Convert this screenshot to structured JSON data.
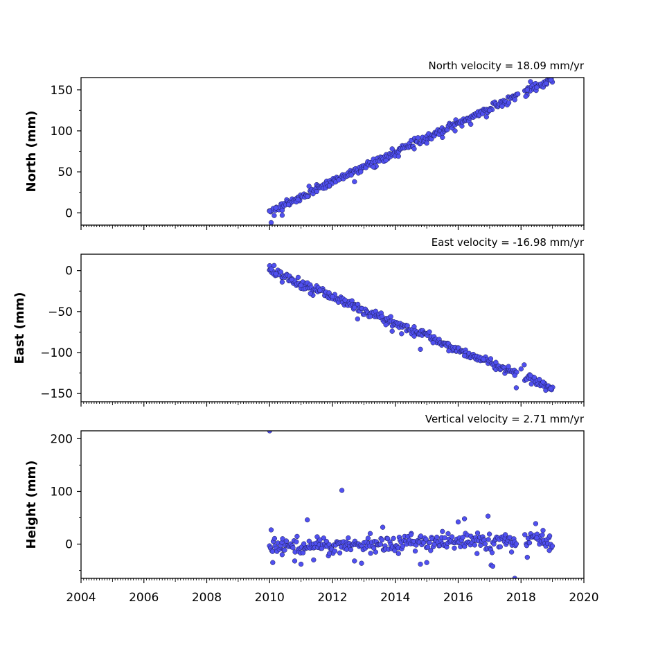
{
  "chart_data": [
    {
      "type": "scatter",
      "title": "North velocity = 18.09 mm/yr",
      "ylabel": "North (mm)",
      "xlim": [
        2004,
        2020
      ],
      "ylim": [
        -15,
        165
      ],
      "yticks": [
        0,
        50,
        100,
        150
      ],
      "ytick_labels": [
        "0",
        "50",
        "100",
        "150"
      ],
      "marker_color": "#5050f0",
      "points": [
        [
          2010.0,
          2
        ],
        [
          2010.05,
          -12
        ],
        [
          2010.2,
          6
        ],
        [
          2010.4,
          3
        ],
        [
          2010.4,
          -3
        ],
        [
          2010.6,
          10
        ],
        [
          2010.9,
          16
        ],
        [
          2011.2,
          20
        ],
        [
          2011.5,
          26
        ],
        [
          2011.9,
          33
        ],
        [
          2012.2,
          40
        ],
        [
          2012.6,
          46
        ],
        [
          2012.7,
          38
        ],
        [
          2012.9,
          50
        ],
        [
          2013.3,
          56
        ],
        [
          2013.7,
          64
        ],
        [
          2013.9,
          78
        ],
        [
          2014.1,
          69
        ],
        [
          2014.6,
          78
        ],
        [
          2015.0,
          85
        ],
        [
          2015.5,
          92
        ],
        [
          2015.9,
          100
        ],
        [
          2016.4,
          108
        ],
        [
          2016.9,
          117
        ],
        [
          2017.0,
          125
        ],
        [
          2017.4,
          130
        ],
        [
          2017.8,
          138
        ],
        [
          2017.9,
          145
        ],
        [
          2018.15,
          142
        ],
        [
          2018.2,
          150
        ],
        [
          2018.3,
          160
        ],
        [
          2018.5,
          153
        ],
        [
          2018.8,
          158
        ],
        [
          2018.95,
          162
        ]
      ],
      "trend": {
        "start": [
          2010.0,
          2
        ],
        "end": [
          2019.0,
          163
        ],
        "scatter": 3,
        "outlier_every": 37
      }
    },
    {
      "type": "scatter",
      "title": "East velocity = -16.98 mm/yr",
      "ylabel": "East (mm)",
      "xlim": [
        2004,
        2020
      ],
      "ylim": [
        -160,
        20
      ],
      "yticks": [
        0,
        -50,
        -100,
        -150
      ],
      "ytick_labels": [
        "0",
        "−50",
        "−100",
        "−150"
      ],
      "marker_color": "#5050f0",
      "points": [
        [
          2010.0,
          6
        ],
        [
          2010.05,
          2
        ],
        [
          2010.2,
          -4
        ],
        [
          2010.4,
          -14
        ],
        [
          2010.7,
          -11
        ],
        [
          2011.0,
          -18
        ],
        [
          2011.3,
          -28
        ],
        [
          2011.6,
          -24
        ],
        [
          2012.0,
          -32
        ],
        [
          2012.4,
          -36
        ],
        [
          2012.7,
          -45
        ],
        [
          2012.8,
          -59
        ],
        [
          2013.2,
          -56
        ],
        [
          2013.7,
          -66
        ],
        [
          2013.9,
          -74
        ],
        [
          2014.2,
          -77
        ],
        [
          2014.6,
          -80
        ],
        [
          2014.8,
          -96
        ],
        [
          2015.2,
          -88
        ],
        [
          2015.7,
          -98
        ],
        [
          2016.2,
          -104
        ],
        [
          2016.8,
          -108
        ],
        [
          2017.2,
          -112
        ],
        [
          2017.6,
          -117
        ],
        [
          2017.8,
          -128
        ],
        [
          2017.85,
          -143
        ],
        [
          2018.0,
          -120
        ],
        [
          2018.1,
          -115
        ],
        [
          2018.3,
          -128
        ],
        [
          2018.7,
          -136
        ],
        [
          2018.95,
          -144
        ]
      ],
      "trend": {
        "start": [
          2010.0,
          0
        ],
        "end": [
          2019.0,
          -144
        ],
        "scatter": 3,
        "outlier_every": 41
      }
    },
    {
      "type": "scatter",
      "title": "Vertical velocity = 2.71 mm/yr",
      "ylabel": "Height (mm)",
      "xlabel": "",
      "xlim": [
        2004,
        2020
      ],
      "ylim": [
        -65,
        215
      ],
      "yticks": [
        0,
        100,
        200
      ],
      "ytick_labels": [
        "0",
        "100",
        "200"
      ],
      "xticks": [
        2004,
        2006,
        2008,
        2010,
        2012,
        2014,
        2016,
        2018,
        2020
      ],
      "xtick_labels": [
        "2004",
        "2006",
        "2008",
        "2010",
        "2012",
        "2014",
        "2016",
        "2018",
        "2020"
      ],
      "marker_color": "#5050f0",
      "points": [
        [
          2010.0,
          215
        ],
        [
          2010.05,
          27
        ],
        [
          2010.1,
          -35
        ],
        [
          2010.4,
          -20
        ],
        [
          2010.8,
          -32
        ],
        [
          2011.0,
          -38
        ],
        [
          2011.2,
          46
        ],
        [
          2011.4,
          -30
        ],
        [
          2011.6,
          8
        ],
        [
          2011.9,
          -18
        ],
        [
          2012.3,
          102
        ],
        [
          2012.45,
          -10
        ],
        [
          2012.7,
          -32
        ],
        [
          2013.2,
          20
        ],
        [
          2013.6,
          32
        ],
        [
          2014.1,
          -18
        ],
        [
          2014.5,
          18
        ],
        [
          2014.8,
          -38
        ],
        [
          2015.0,
          -35
        ],
        [
          2015.5,
          24
        ],
        [
          2016.0,
          42
        ],
        [
          2016.2,
          48
        ],
        [
          2016.6,
          -18
        ],
        [
          2016.95,
          53
        ],
        [
          2017.05,
          -40
        ],
        [
          2017.1,
          -42
        ],
        [
          2017.5,
          18
        ],
        [
          2017.7,
          -15
        ],
        [
          2017.8,
          -65
        ],
        [
          2018.2,
          -25
        ],
        [
          2018.5,
          12
        ],
        [
          2018.7,
          26
        ],
        [
          2018.9,
          -12
        ]
      ],
      "trend": {
        "start": [
          2010.0,
          -6
        ],
        "end": [
          2019.0,
          10
        ],
        "scatter": 9,
        "outlier_every": 23
      }
    }
  ]
}
